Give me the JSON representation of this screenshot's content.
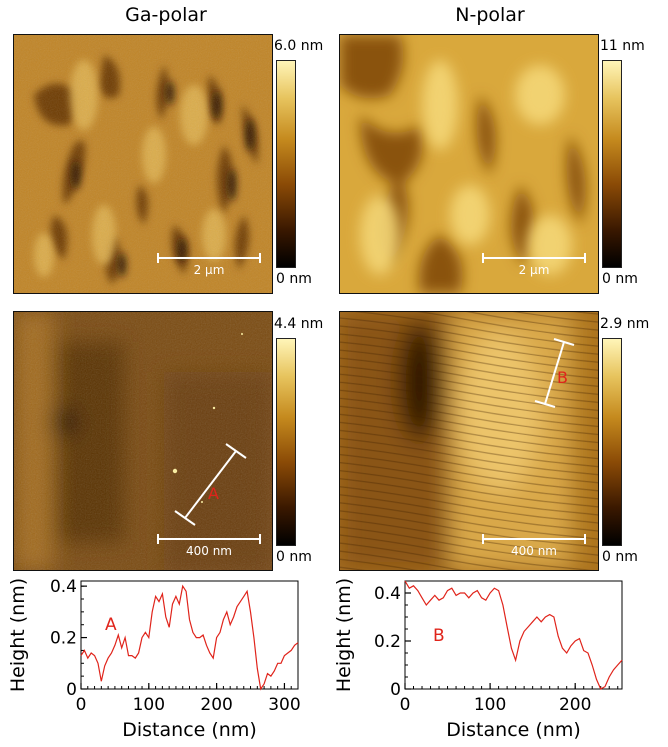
{
  "columns": {
    "left_title": "Ga-polar",
    "right_title": "N-polar"
  },
  "panels": {
    "ga_top": {
      "max": "6.0 nm",
      "min": "0 nm",
      "scale": "2 µm"
    },
    "n_top": {
      "max": "11 nm",
      "min": "0 nm",
      "scale": "2 µm"
    },
    "ga_mid": {
      "max": "4.4 nm",
      "min": "0 nm",
      "scale": "400 nm",
      "marker": "A"
    },
    "n_mid": {
      "max": "2.9 nm",
      "min": "0 nm",
      "scale": "400 nm",
      "marker": "B"
    }
  },
  "colors": {
    "profile": "#e0241b",
    "colormap_low": "#000000",
    "colormap_high": "#fff5b8"
  },
  "chart_data": [
    {
      "type": "line",
      "marker_label": "A",
      "xlabel": "Distance (nm)",
      "ylabel": "Height (nm)",
      "xlim": [
        0,
        320
      ],
      "ylim": [
        0,
        0.42
      ],
      "xticks": [
        0,
        100,
        200,
        300
      ],
      "yticks": [
        0,
        0.2,
        0.4
      ],
      "ytick_labels": [
        "0",
        "0.2",
        "0.4"
      ],
      "x": [
        0,
        5,
        10,
        15,
        20,
        25,
        30,
        35,
        40,
        45,
        50,
        55,
        60,
        65,
        70,
        75,
        80,
        85,
        90,
        95,
        100,
        105,
        110,
        115,
        120,
        125,
        130,
        135,
        140,
        145,
        150,
        155,
        160,
        165,
        170,
        175,
        180,
        185,
        190,
        195,
        200,
        205,
        210,
        215,
        220,
        225,
        230,
        235,
        240,
        245,
        250,
        255,
        260,
        265,
        270,
        275,
        280,
        285,
        290,
        295,
        300,
        305,
        310,
        315,
        320
      ],
      "y": [
        0.13,
        0.15,
        0.12,
        0.14,
        0.13,
        0.1,
        0.03,
        0.09,
        0.12,
        0.14,
        0.17,
        0.21,
        0.16,
        0.2,
        0.13,
        0.13,
        0.12,
        0.14,
        0.2,
        0.22,
        0.2,
        0.3,
        0.36,
        0.34,
        0.37,
        0.28,
        0.24,
        0.33,
        0.36,
        0.33,
        0.4,
        0.38,
        0.27,
        0.22,
        0.2,
        0.2,
        0.21,
        0.17,
        0.14,
        0.12,
        0.2,
        0.22,
        0.27,
        0.3,
        0.25,
        0.28,
        0.32,
        0.34,
        0.36,
        0.38,
        0.3,
        0.2,
        0.08,
        0.0,
        0.02,
        0.06,
        0.05,
        0.07,
        0.1,
        0.1,
        0.13,
        0.14,
        0.15,
        0.17,
        0.18
      ]
    },
    {
      "type": "line",
      "marker_label": "B",
      "xlabel": "Distance (nm)",
      "ylabel": "Height (nm)",
      "xlim": [
        0,
        255
      ],
      "ylim": [
        0,
        0.45
      ],
      "xticks": [
        0,
        100,
        200
      ],
      "yticks": [
        0,
        0.2,
        0.4
      ],
      "ytick_labels": [
        "0",
        "0.2",
        "0.4"
      ],
      "x": [
        0,
        5,
        10,
        15,
        20,
        25,
        30,
        35,
        40,
        45,
        50,
        55,
        60,
        65,
        70,
        75,
        80,
        85,
        90,
        95,
        100,
        105,
        110,
        115,
        120,
        125,
        130,
        135,
        140,
        145,
        150,
        155,
        160,
        165,
        170,
        175,
        180,
        185,
        190,
        195,
        200,
        205,
        210,
        215,
        220,
        225,
        230,
        235,
        240,
        245,
        250,
        255
      ],
      "y": [
        0.45,
        0.42,
        0.43,
        0.41,
        0.38,
        0.35,
        0.37,
        0.39,
        0.37,
        0.38,
        0.41,
        0.42,
        0.39,
        0.4,
        0.4,
        0.38,
        0.4,
        0.41,
        0.38,
        0.37,
        0.4,
        0.42,
        0.41,
        0.35,
        0.26,
        0.17,
        0.12,
        0.2,
        0.24,
        0.26,
        0.28,
        0.3,
        0.28,
        0.3,
        0.31,
        0.3,
        0.22,
        0.17,
        0.15,
        0.18,
        0.2,
        0.21,
        0.16,
        0.15,
        0.1,
        0.04,
        0.0,
        0.01,
        0.05,
        0.08,
        0.1,
        0.12
      ]
    }
  ]
}
